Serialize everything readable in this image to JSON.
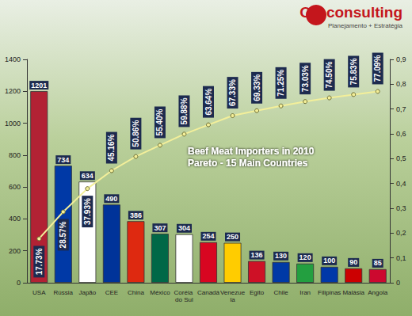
{
  "chart_data": {
    "type": "bar",
    "title": "Beef Meat Importers in 2010",
    "subtitle": "Pareto - 15 Main Countries",
    "annotations": [
      "OD consulting",
      "Planejamento + Estratégia"
    ],
    "categories": [
      "USA",
      "Rússia",
      "Japão",
      "CEE",
      "China",
      "México",
      "Coréia do Sul",
      "Canadá",
      "Venezuela",
      "Egito",
      "Chile",
      "Iran",
      "Filipinas",
      "Malásia",
      "Angola"
    ],
    "ylim": [
      0,
      1400
    ],
    "yticks": [
      0,
      200,
      400,
      600,
      800,
      1000,
      1200,
      1400
    ],
    "y2lim": [
      0,
      0.9
    ],
    "y2ticks": [
      0,
      {
        "value": 0.1,
        "label": "0,1"
      },
      {
        "value": 0.2,
        "label": "0,2"
      },
      {
        "value": 0.3,
        "label": "0,3"
      },
      {
        "value": 0.4,
        "label": "0,4"
      },
      {
        "value": 0.5,
        "label": "0,5"
      },
      {
        "value": 0.6,
        "label": "0,6"
      },
      {
        "value": 0.7,
        "label": "0,7"
      },
      {
        "value": 0.8,
        "label": "0,8"
      },
      {
        "value": 0.9,
        "label": "0,9"
      }
    ],
    "grid": false,
    "series": [
      {
        "type": "bar",
        "colors": [
          "#b22234",
          "#0039a6",
          "#ffffff",
          "#003399",
          "#de2910",
          "#006847",
          "#ffffff",
          "#d80621",
          "#ffcc00",
          "#ce1126",
          "#0039a6",
          "#239f40",
          "#0038a8",
          "#cc0001",
          "#cc092f"
        ],
        "values": [
          1201,
          734,
          634,
          490,
          386,
          307,
          304,
          254,
          250,
          136,
          130,
          120,
          100,
          90,
          85
        ],
        "data_labels": true
      },
      {
        "type": "line",
        "axis": "y2",
        "color": "#f3ef9a",
        "marker": "circle",
        "values": [
          0.1773,
          0.2857,
          0.3793,
          0.4516,
          0.5086,
          0.554,
          0.5988,
          0.6364,
          0.6733,
          0.6933,
          0.7125,
          0.7303,
          0.745,
          0.7583,
          0.7709
        ],
        "value_labels": [
          "17.73%",
          "28.57%",
          "37.93%",
          "45.16%",
          "50.86%",
          "55.40%",
          "59.88%",
          "63.64%",
          "67.33%",
          "69.33%",
          "71.25%",
          "73.03%",
          "74.50%",
          "75.83%",
          "77.09%"
        ],
        "data_labels": true
      }
    ]
  }
}
